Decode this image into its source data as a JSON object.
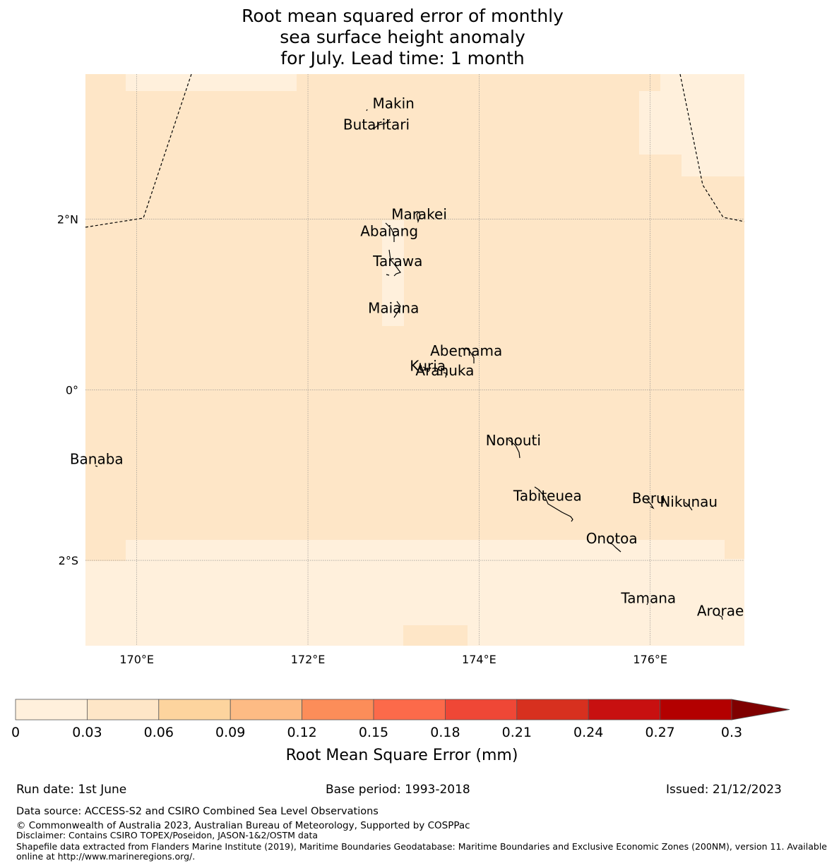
{
  "title": {
    "line1": "Root mean squared error of monthly",
    "line2": "sea surface height anomaly",
    "line3": "for July. Lead time: 1 month"
  },
  "axes": {
    "lon_ticks": [
      {
        "lon": 170,
        "label": "170°E"
      },
      {
        "lon": 172,
        "label": "172°E"
      },
      {
        "lon": 174,
        "label": "174°E"
      },
      {
        "lon": 176,
        "label": "176°E"
      }
    ],
    "lat_ticks": [
      {
        "lat": 2,
        "label": "2°N"
      },
      {
        "lat": 0,
        "label": "0°"
      },
      {
        "lat": -2,
        "label": "2°S"
      }
    ],
    "lon_range": [
      169.4,
      177.1
    ],
    "lat_range": [
      -3.0,
      3.7
    ]
  },
  "colors": {
    "band_0_003": "#fff0dc",
    "band_003_006": "#fee6c7",
    "coast": "#000000",
    "grid": "#888888"
  },
  "islands": [
    {
      "name": "Makin",
      "lon": 173.0,
      "lat": 3.3
    },
    {
      "name": "Butaritari",
      "lon": 172.8,
      "lat": 3.05
    },
    {
      "name": "Marakei",
      "lon": 173.3,
      "lat": 2.0
    },
    {
      "name": "Abaiang",
      "lon": 172.95,
      "lat": 1.8
    },
    {
      "name": "Tarawa",
      "lon": 173.05,
      "lat": 1.45
    },
    {
      "name": "Maiana",
      "lon": 173.0,
      "lat": 0.9
    },
    {
      "name": "Abemama",
      "lon": 173.85,
      "lat": 0.4
    },
    {
      "name": "Kuria",
      "lon": 173.4,
      "lat": 0.22
    },
    {
      "name": "Aranuka",
      "lon": 173.6,
      "lat": 0.17
    },
    {
      "name": "Nonouti",
      "lon": 174.4,
      "lat": -0.65
    },
    {
      "name": "Banaba",
      "lon": 169.53,
      "lat": -0.87
    },
    {
      "name": "Tabiteuea",
      "lon": 174.8,
      "lat": -1.3
    },
    {
      "name": "Beru",
      "lon": 175.98,
      "lat": -1.33
    },
    {
      "name": "Nikunau",
      "lon": 176.45,
      "lat": -1.37
    },
    {
      "name": "Onotoa",
      "lon": 175.55,
      "lat": -1.8
    },
    {
      "name": "Tamana",
      "lon": 175.98,
      "lat": -2.5
    },
    {
      "name": "Arorae",
      "lon": 176.82,
      "lat": -2.65
    }
  ],
  "colorbar": {
    "ticks": [
      "0",
      "0.03",
      "0.06",
      "0.09",
      "0.12",
      "0.15",
      "0.18",
      "0.21",
      "0.24",
      "0.27",
      "0.3"
    ],
    "colors": [
      "#fff0dc",
      "#fee6c7",
      "#fdd49e",
      "#fdbb84",
      "#fc8d59",
      "#fc6a4a",
      "#ef4736",
      "#d7301f",
      "#c81010",
      "#b30000"
    ],
    "extend_color": "#7f0000",
    "label": "Root Mean Square Error (mm)"
  },
  "footer": {
    "run_date": "Run date: 1st June",
    "base_period": "Base period: 1993-2018",
    "issued": "Issued: 21/12/2023",
    "data_source": "Data source: ACCESS-S2 and CSIRO Combined Sea Level Observations",
    "copyright": "© Commonwealth of Australia 2023, Australian Bureau of Meteorology, Supported by COSPPac",
    "disclaimer": "Disclaimer: Contains CSIRO TOPEX/Poseidon, JASON-1&2/OSTM data",
    "shapefile_1": "Shapefile data extracted from Flanders Marine Institute (2019), Maritime Boundaries Geodatabase: Maritime Boundaries and Exclusive Economic Zones (200NM), version 11. Available",
    "shapefile_2": "online at http://www.marineregions.org/."
  }
}
